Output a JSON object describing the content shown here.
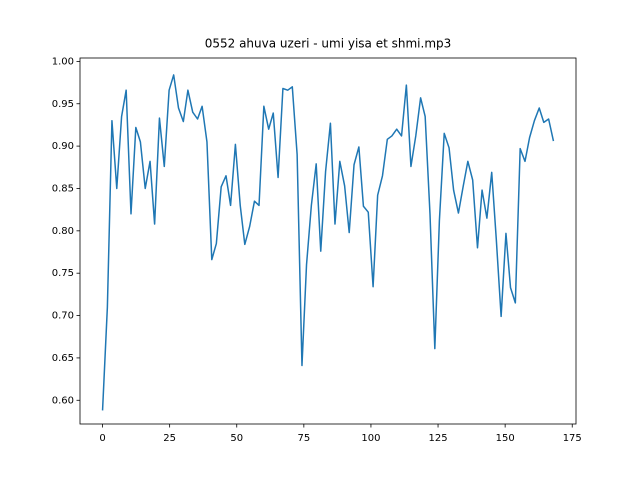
{
  "chart_data": {
    "type": "line",
    "title": "0552 ahuva uzeri - umi yisa et shmi.mp3",
    "x": [
      0,
      1.8,
      3.5,
      5.3,
      7.1,
      8.8,
      10.6,
      12.4,
      14.1,
      15.9,
      17.7,
      19.4,
      21.2,
      23.0,
      24.8,
      26.5,
      28.3,
      30.1,
      31.8,
      33.6,
      35.4,
      37.1,
      38.9,
      40.7,
      42.4,
      44.2,
      46.0,
      47.7,
      49.5,
      51.3,
      53.0,
      54.8,
      56.6,
      58.3,
      60.1,
      61.9,
      63.6,
      65.4,
      67.2,
      69.0,
      70.7,
      72.5,
      74.3,
      76.0,
      77.8,
      79.6,
      81.3,
      83.1,
      84.9,
      86.6,
      88.4,
      90.2,
      91.9,
      93.7,
      95.5,
      97.2,
      99.0,
      100.8,
      102.5,
      104.3,
      106.1,
      107.8,
      109.6,
      111.4,
      113.2,
      114.9,
      116.7,
      118.5,
      120.2,
      122.0,
      123.8,
      125.5,
      127.3,
      129.1,
      130.8,
      132.6,
      134.4,
      136.1,
      137.9,
      139.7,
      141.4,
      143.2,
      145.0,
      146.7,
      148.5,
      150.3,
      152.0,
      153.8,
      155.6,
      157.4,
      159.1,
      160.9,
      162.7,
      164.4,
      166.2,
      168.0
    ],
    "series": [
      {
        "color": "#1f77b4",
        "values": [
          0.588,
          0.71,
          0.93,
          0.85,
          0.935,
          0.966,
          0.82,
          0.922,
          0.905,
          0.85,
          0.882,
          0.808,
          0.933,
          0.876,
          0.966,
          0.984,
          0.945,
          0.929,
          0.966,
          0.94,
          0.932,
          0.947,
          0.905,
          0.766,
          0.785,
          0.852,
          0.865,
          0.83,
          0.902,
          0.83,
          0.784,
          0.805,
          0.835,
          0.83,
          0.947,
          0.92,
          0.939,
          0.863,
          0.968,
          0.966,
          0.97,
          0.89,
          0.641,
          0.76,
          0.83,
          0.879,
          0.776,
          0.87,
          0.927,
          0.808,
          0.882,
          0.853,
          0.798,
          0.878,
          0.899,
          0.829,
          0.822,
          0.734,
          0.842,
          0.865,
          0.908,
          0.912,
          0.92,
          0.912,
          0.972,
          0.876,
          0.912,
          0.957,
          0.935,
          0.82,
          0.661,
          0.812,
          0.915,
          0.898,
          0.848,
          0.821,
          0.853,
          0.882,
          0.86,
          0.78,
          0.848,
          0.815,
          0.869,
          0.79,
          0.699,
          0.797,
          0.733,
          0.715,
          0.897,
          0.882,
          0.91,
          0.93,
          0.945,
          0.928,
          0.932,
          0.906
        ]
      }
    ],
    "xlim": [
      -8.4,
      176.4
    ],
    "xticks": [
      0,
      25,
      50,
      75,
      100,
      125,
      150,
      175
    ],
    "ylim": [
      0.572,
      1.004
    ],
    "yticks": [
      {
        "value": 0.6,
        "label": "0.60"
      },
      {
        "value": 0.65,
        "label": "0.65"
      },
      {
        "value": 0.7,
        "label": "0.70"
      },
      {
        "value": 0.75,
        "label": "0.75"
      },
      {
        "value": 0.8,
        "label": "0.80"
      },
      {
        "value": 0.85,
        "label": "0.85"
      },
      {
        "value": 0.9,
        "label": "0.90"
      },
      {
        "value": 0.95,
        "label": "0.95"
      },
      {
        "value": 1.0,
        "label": "1.00"
      }
    ],
    "grid": false
  }
}
